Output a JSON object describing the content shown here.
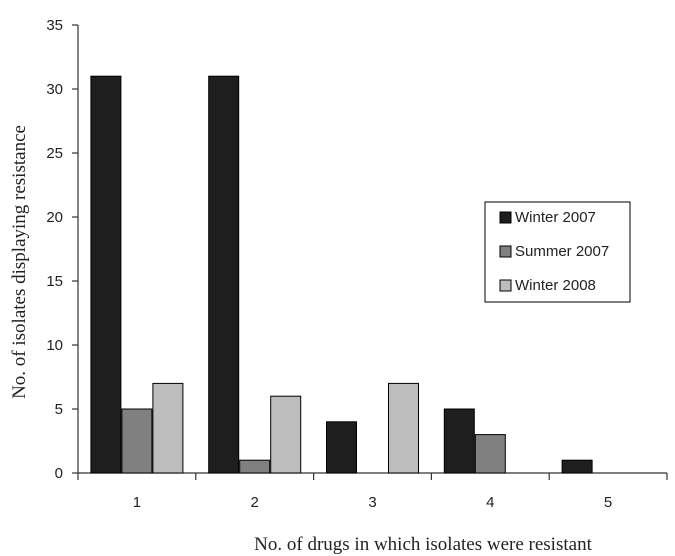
{
  "chart_data": {
    "type": "bar",
    "title": "",
    "xlabel": "No. of drugs in which isolates were resistant",
    "ylabel": "No. of isolates displaying resistance",
    "categories": [
      "1",
      "2",
      "3",
      "4",
      "5"
    ],
    "series": [
      {
        "name": "Winter 2007",
        "color": "#1e1e1e",
        "values": [
          31,
          31,
          4,
          5,
          1
        ]
      },
      {
        "name": "Summer 2007",
        "color": "#808080",
        "values": [
          5,
          1,
          0,
          3,
          0
        ]
      },
      {
        "name": "Winter 2008",
        "color": "#bdbdbd",
        "values": [
          7,
          6,
          7,
          0,
          0
        ]
      }
    ],
    "ylim": [
      0,
      35
    ],
    "yticks": [
      "0",
      "5",
      "10",
      "15",
      "20",
      "25",
      "30",
      "35"
    ],
    "grid": false,
    "legend": "right"
  }
}
